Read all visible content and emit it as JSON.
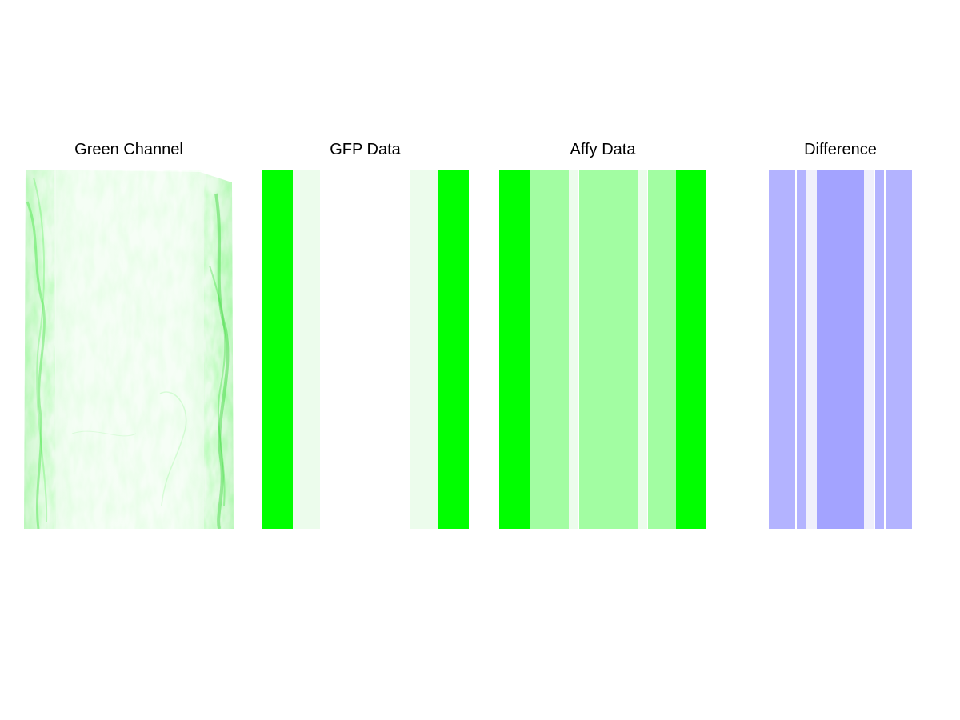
{
  "panels": {
    "green_channel": {
      "title": "Green Channel",
      "image": "microscopy-green-fluorescence-channel",
      "tint": "#00ff00"
    },
    "gfp_data": {
      "title": "GFP Data",
      "stripes": [
        {
          "color": "#00ff00"
        },
        {
          "color": "#ecfcec"
        },
        {
          "color": "#ffffff"
        },
        {
          "color": "#ecfcec"
        },
        {
          "color": "#00ff00"
        }
      ]
    },
    "affy_data": {
      "title": "Affy Data",
      "stripes": [
        {
          "color": "#00ff00"
        },
        {
          "color": "#a2fda2"
        },
        {
          "color": "#a2fda2"
        },
        {
          "color": "#ecfcec"
        },
        {
          "color": "#a2fda2"
        },
        {
          "color": "#ecfcec"
        },
        {
          "color": "#a2fda2"
        },
        {
          "color": "#00ff00"
        }
      ]
    },
    "difference": {
      "title": "Difference",
      "stripes": [
        {
          "color": "#b3b3ff"
        },
        {
          "color": "#b3b3ff"
        },
        {
          "color": "#f0f0fc"
        },
        {
          "color": "#a3a3ff"
        },
        {
          "color": "#f0f0fc"
        },
        {
          "color": "#b3b3ff"
        },
        {
          "color": "#b3b3ff"
        }
      ]
    }
  }
}
